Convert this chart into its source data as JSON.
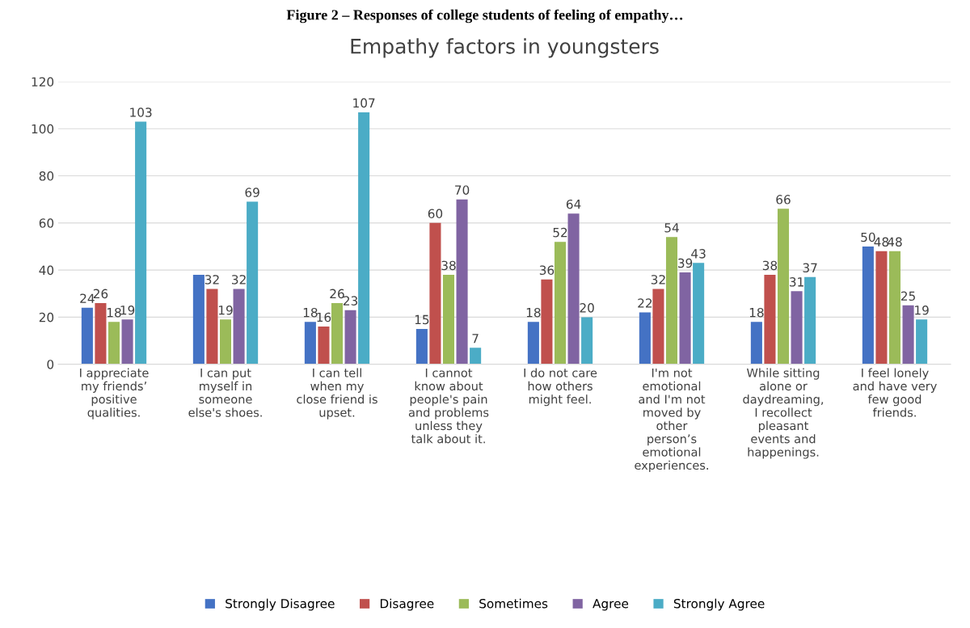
{
  "chart_data": {
    "type": "bar",
    "title": "Empathy factors in youngsters",
    "annotations": [
      "Figure 2 – Responses of college students of feeling of empathy…"
    ],
    "categories": [
      "I appreciate\nmy friends’\npositive\nqualities.",
      "I can put\nmyself in\nsomeone\nelse's shoes.",
      "I can tell\nwhen my\nclose friend is\nupset.",
      "I cannot\nknow about\npeople's pain\nand problems\nunless they\ntalk about it.",
      "I do not care\nhow others\nmight feel.",
      "I'm not\nemotional\nand I'm not\nmoved by\nother\nperson’s\nemotional\nexperiences.",
      "While sitting\nalone or\ndaydreaming,\nI recollect\npleasant\nevents and\nhappenings.",
      "I feel lonely\nand have very\nfew good\nfriends."
    ],
    "series": [
      {
        "name": "Strongly Disagree",
        "color": "#4472c4",
        "values": [
          24,
          38,
          18,
          15,
          18,
          22,
          18,
          50
        ],
        "value_labels": [
          "24",
          null,
          "18",
          "15",
          "18",
          "22",
          "18",
          "50"
        ]
      },
      {
        "name": "Disagree",
        "color": "#c0504d",
        "values": [
          26,
          32,
          16,
          60,
          36,
          32,
          38,
          48
        ],
        "value_labels": [
          "26",
          "32",
          "16",
          "60",
          "36",
          "32",
          "38",
          "48"
        ]
      },
      {
        "name": "Sometimes",
        "color": "#9bbb59",
        "values": [
          18,
          19,
          26,
          38,
          52,
          54,
          66,
          48
        ],
        "value_labels": [
          "18",
          "19",
          "26",
          "38",
          "52",
          "54",
          "66",
          "48"
        ]
      },
      {
        "name": "Agree",
        "color": "#8064a2",
        "values": [
          19,
          32,
          23,
          70,
          64,
          39,
          31,
          25
        ],
        "value_labels": [
          "19",
          "32",
          "23",
          "70",
          "64",
          "39",
          "31",
          "25"
        ]
      },
      {
        "name": "Strongly Agree",
        "color": "#4bacc6",
        "values": [
          103,
          69,
          107,
          7,
          20,
          43,
          37,
          19
        ],
        "value_labels": [
          "103",
          "69",
          "107",
          "7",
          "20",
          "43",
          "37",
          "19"
        ]
      }
    ],
    "ylim": [
      0,
      120
    ],
    "yticks": [
      0,
      20,
      40,
      60,
      80,
      100,
      120
    ],
    "grid": "y",
    "legend": "bottom"
  }
}
